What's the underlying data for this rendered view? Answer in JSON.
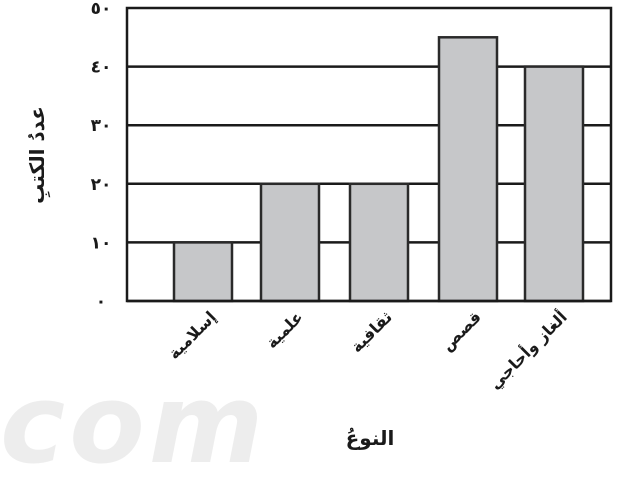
{
  "chart_data": {
    "type": "bar",
    "categories": [
      "إسلامية",
      "علمية",
      "ثقافية",
      "قصص",
      "ألغاز وأحاجي"
    ],
    "values": [
      10,
      20,
      20,
      45,
      40
    ],
    "xlabel": "النوعُ",
    "ylabel": "عددُ الكتبِ",
    "y_ticks": [
      "٠",
      "١٠",
      "٢٠",
      "٣٠",
      "٤٠",
      "٥٠"
    ],
    "y_tick_values": [
      0,
      10,
      20,
      30,
      40,
      50
    ],
    "ylim": [
      0,
      50
    ],
    "grid": "horizontal",
    "bar_color": "#c6c7c9",
    "bar_stroke": "#2a2a2a"
  },
  "watermark": "com"
}
